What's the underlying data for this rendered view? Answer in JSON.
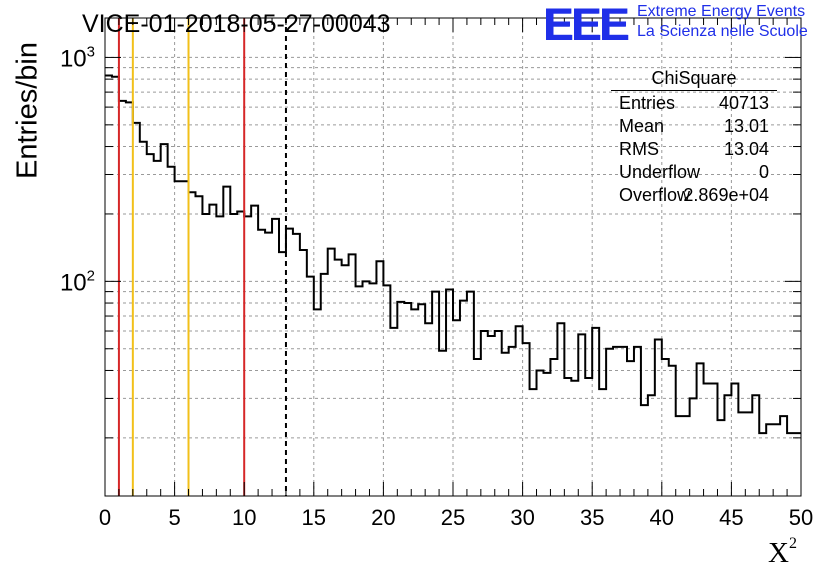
{
  "title": "VICE-01-2018-05-27-00043",
  "logo": {
    "mark": "EEE",
    "line1": "Extreme Energy Events",
    "line2": "La Scienza nelle Scuole",
    "color": "#1f2fe8"
  },
  "stats": {
    "title": "ChiSquare",
    "rows": [
      {
        "name": "Entries",
        "value": "40713"
      },
      {
        "name": "Mean",
        "value": "13.01"
      },
      {
        "name": "RMS",
        "value": "13.04"
      },
      {
        "name": "Underflow",
        "value": "0"
      },
      {
        "name": "Overflow",
        "value": "2.869e+04"
      }
    ]
  },
  "chart_data": {
    "type": "histogram",
    "x_label": "X",
    "x_label_superscript": "2",
    "y_label": "Entries/bin",
    "y_scale": "log",
    "xlim": [
      0,
      50
    ],
    "ylim": [
      11,
      1500
    ],
    "bin_width": 0.5,
    "grid": true,
    "x_ticks": [
      0,
      5,
      10,
      15,
      20,
      25,
      30,
      35,
      40,
      45,
      50
    ],
    "x_tick_labels": [
      "0",
      "5",
      "10",
      "15",
      "20",
      "25",
      "30",
      "35",
      "40",
      "45",
      "50"
    ],
    "y_major_ticks": [
      100,
      1000
    ],
    "y_tick_labels": [
      {
        "base": "10",
        "exp": "2"
      },
      {
        "base": "10",
        "exp": "3"
      }
    ],
    "bin_values": [
      830,
      820,
      640,
      630,
      510,
      420,
      370,
      345,
      410,
      325,
      280,
      280,
      250,
      240,
      200,
      220,
      195,
      265,
      200,
      205,
      195,
      218,
      170,
      165,
      190,
      135,
      172,
      163,
      138,
      105,
      75,
      108,
      140,
      125,
      118,
      132,
      95,
      100,
      98,
      123,
      96,
      62,
      81,
      80,
      75,
      79,
      65,
      90,
      49,
      92,
      67,
      82,
      90,
      45,
      60,
      57,
      60,
      48,
      51,
      63,
      53,
      33,
      40,
      39,
      45,
      65,
      37,
      36,
      58,
      37,
      62,
      33,
      50,
      51,
      51,
      44,
      51,
      28,
      31,
      55,
      45,
      42,
      25,
      25,
      30,
      43,
      35,
      35,
      24,
      31,
      35,
      26,
      26,
      31,
      21,
      23,
      23,
      25,
      21,
      21
    ],
    "lines": [
      {
        "x": 1,
        "color": "#d62728",
        "style": "solid"
      },
      {
        "x": 2,
        "color": "#f2c019",
        "style": "solid"
      },
      {
        "x": 6,
        "color": "#f2c019",
        "style": "solid"
      },
      {
        "x": 10,
        "color": "#d62728",
        "style": "solid"
      },
      {
        "x": 13,
        "color": "#000000",
        "style": "dashed"
      }
    ],
    "color": "#000000"
  }
}
